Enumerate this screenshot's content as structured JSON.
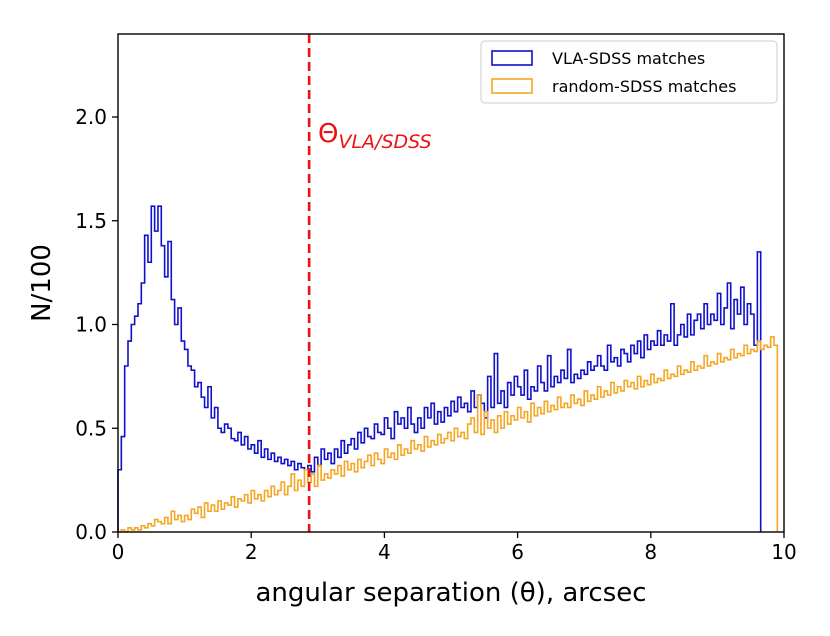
{
  "chart_data": {
    "type": "histogram",
    "xlabel": "angular separation (θ), arcsec",
    "ylabel": "N/100",
    "xlim": [
      0,
      10
    ],
    "ylim": [
      0,
      2.4
    ],
    "x_ticks": [
      "0",
      "2",
      "4",
      "6",
      "8",
      "10"
    ],
    "x_tick_values": [
      0,
      2,
      4,
      6,
      8,
      10
    ],
    "y_ticks": [
      "0.0",
      "0.5",
      "1.0",
      "1.5",
      "2.0"
    ],
    "y_tick_values": [
      0.0,
      0.5,
      1.0,
      1.5,
      2.0
    ],
    "bin_width": 0.05,
    "vline": {
      "x": 2.87,
      "label": "Θ",
      "label_sub": "VLA/SDSS",
      "color": "#ee1111"
    },
    "legend": {
      "position": "top-right"
    },
    "series": [
      {
        "name": "VLA-SDSS matches",
        "color": "#1111cc",
        "values": [
          0.3,
          0.46,
          0.8,
          0.92,
          1.0,
          1.04,
          1.1,
          1.2,
          1.43,
          1.3,
          1.57,
          1.45,
          1.57,
          1.38,
          1.23,
          1.4,
          1.12,
          1.0,
          1.08,
          0.92,
          0.88,
          0.8,
          0.78,
          0.7,
          0.72,
          0.65,
          0.6,
          0.7,
          0.55,
          0.6,
          0.5,
          0.48,
          0.52,
          0.5,
          0.45,
          0.44,
          0.48,
          0.42,
          0.46,
          0.4,
          0.42,
          0.38,
          0.44,
          0.36,
          0.4,
          0.35,
          0.38,
          0.34,
          0.36,
          0.33,
          0.35,
          0.32,
          0.34,
          0.3,
          0.33,
          0.31,
          0.3,
          0.32,
          0.29,
          0.36,
          0.32,
          0.4,
          0.35,
          0.38,
          0.33,
          0.4,
          0.36,
          0.44,
          0.38,
          0.42,
          0.45,
          0.4,
          0.48,
          0.43,
          0.5,
          0.46,
          0.45,
          0.52,
          0.48,
          0.47,
          0.55,
          0.5,
          0.45,
          0.58,
          0.52,
          0.55,
          0.5,
          0.6,
          0.52,
          0.48,
          0.55,
          0.5,
          0.6,
          0.55,
          0.62,
          0.52,
          0.58,
          0.53,
          0.6,
          0.56,
          0.63,
          0.58,
          0.65,
          0.6,
          0.62,
          0.58,
          0.68,
          0.6,
          0.66,
          0.62,
          0.55,
          0.75,
          0.6,
          0.86,
          0.62,
          0.68,
          0.6,
          0.72,
          0.66,
          0.75,
          0.7,
          0.66,
          0.78,
          0.64,
          0.7,
          0.68,
          0.8,
          0.72,
          0.68,
          0.85,
          0.7,
          0.75,
          0.72,
          0.78,
          0.74,
          0.88,
          0.72,
          0.76,
          0.74,
          0.78,
          0.76,
          0.82,
          0.78,
          0.8,
          0.85,
          0.8,
          0.78,
          0.9,
          0.82,
          0.84,
          0.8,
          0.88,
          0.86,
          0.82,
          0.9,
          0.86,
          0.92,
          0.84,
          0.95,
          0.88,
          0.92,
          0.9,
          0.97,
          0.9,
          0.95,
          0.92,
          1.1,
          0.9,
          0.95,
          1.0,
          0.94,
          1.05,
          0.95,
          1.02,
          1.05,
          0.98,
          1.1,
          1.0,
          1.05,
          1.02,
          1.15,
          1.0,
          1.08,
          1.2,
          0.98,
          1.12,
          1.05,
          1.18,
          1.0,
          1.1,
          1.05,
          0.9,
          1.35
        ]
      },
      {
        "name": "random-SDSS matches",
        "color": "#f5a623",
        "values": [
          0.0,
          0.01,
          0.0,
          0.02,
          0.01,
          0.02,
          0.01,
          0.03,
          0.02,
          0.04,
          0.03,
          0.06,
          0.05,
          0.04,
          0.07,
          0.04,
          0.1,
          0.06,
          0.08,
          0.05,
          0.08,
          0.06,
          0.11,
          0.09,
          0.12,
          0.07,
          0.14,
          0.1,
          0.13,
          0.1,
          0.15,
          0.11,
          0.14,
          0.13,
          0.17,
          0.12,
          0.16,
          0.15,
          0.18,
          0.14,
          0.2,
          0.16,
          0.18,
          0.15,
          0.2,
          0.17,
          0.22,
          0.18,
          0.2,
          0.24,
          0.18,
          0.22,
          0.28,
          0.2,
          0.25,
          0.22,
          0.3,
          0.24,
          0.28,
          0.22,
          0.32,
          0.25,
          0.28,
          0.26,
          0.3,
          0.28,
          0.32,
          0.27,
          0.34,
          0.3,
          0.33,
          0.29,
          0.35,
          0.31,
          0.34,
          0.37,
          0.32,
          0.38,
          0.35,
          0.33,
          0.4,
          0.36,
          0.38,
          0.35,
          0.42,
          0.37,
          0.4,
          0.38,
          0.44,
          0.4,
          0.42,
          0.39,
          0.46,
          0.41,
          0.44,
          0.42,
          0.47,
          0.43,
          0.45,
          0.48,
          0.44,
          0.5,
          0.46,
          0.48,
          0.45,
          0.52,
          0.55,
          0.48,
          0.66,
          0.47,
          0.58,
          0.5,
          0.54,
          0.48,
          0.56,
          0.5,
          0.58,
          0.52,
          0.56,
          0.54,
          0.6,
          0.55,
          0.58,
          0.53,
          0.62,
          0.56,
          0.6,
          0.57,
          0.63,
          0.58,
          0.61,
          0.59,
          0.65,
          0.6,
          0.62,
          0.6,
          0.66,
          0.62,
          0.64,
          0.61,
          0.68,
          0.63,
          0.66,
          0.64,
          0.7,
          0.65,
          0.68,
          0.66,
          0.72,
          0.67,
          0.7,
          0.68,
          0.73,
          0.7,
          0.72,
          0.69,
          0.75,
          0.7,
          0.73,
          0.71,
          0.76,
          0.72,
          0.74,
          0.73,
          0.78,
          0.74,
          0.76,
          0.75,
          0.8,
          0.76,
          0.78,
          0.77,
          0.82,
          0.78,
          0.8,
          0.79,
          0.85,
          0.8,
          0.82,
          0.81,
          0.86,
          0.82,
          0.84,
          0.83,
          0.88,
          0.84,
          0.86,
          0.85,
          0.9,
          0.86,
          0.88,
          0.87,
          0.92,
          0.88,
          0.9,
          0.89,
          0.94,
          0.9
        ]
      }
    ]
  }
}
